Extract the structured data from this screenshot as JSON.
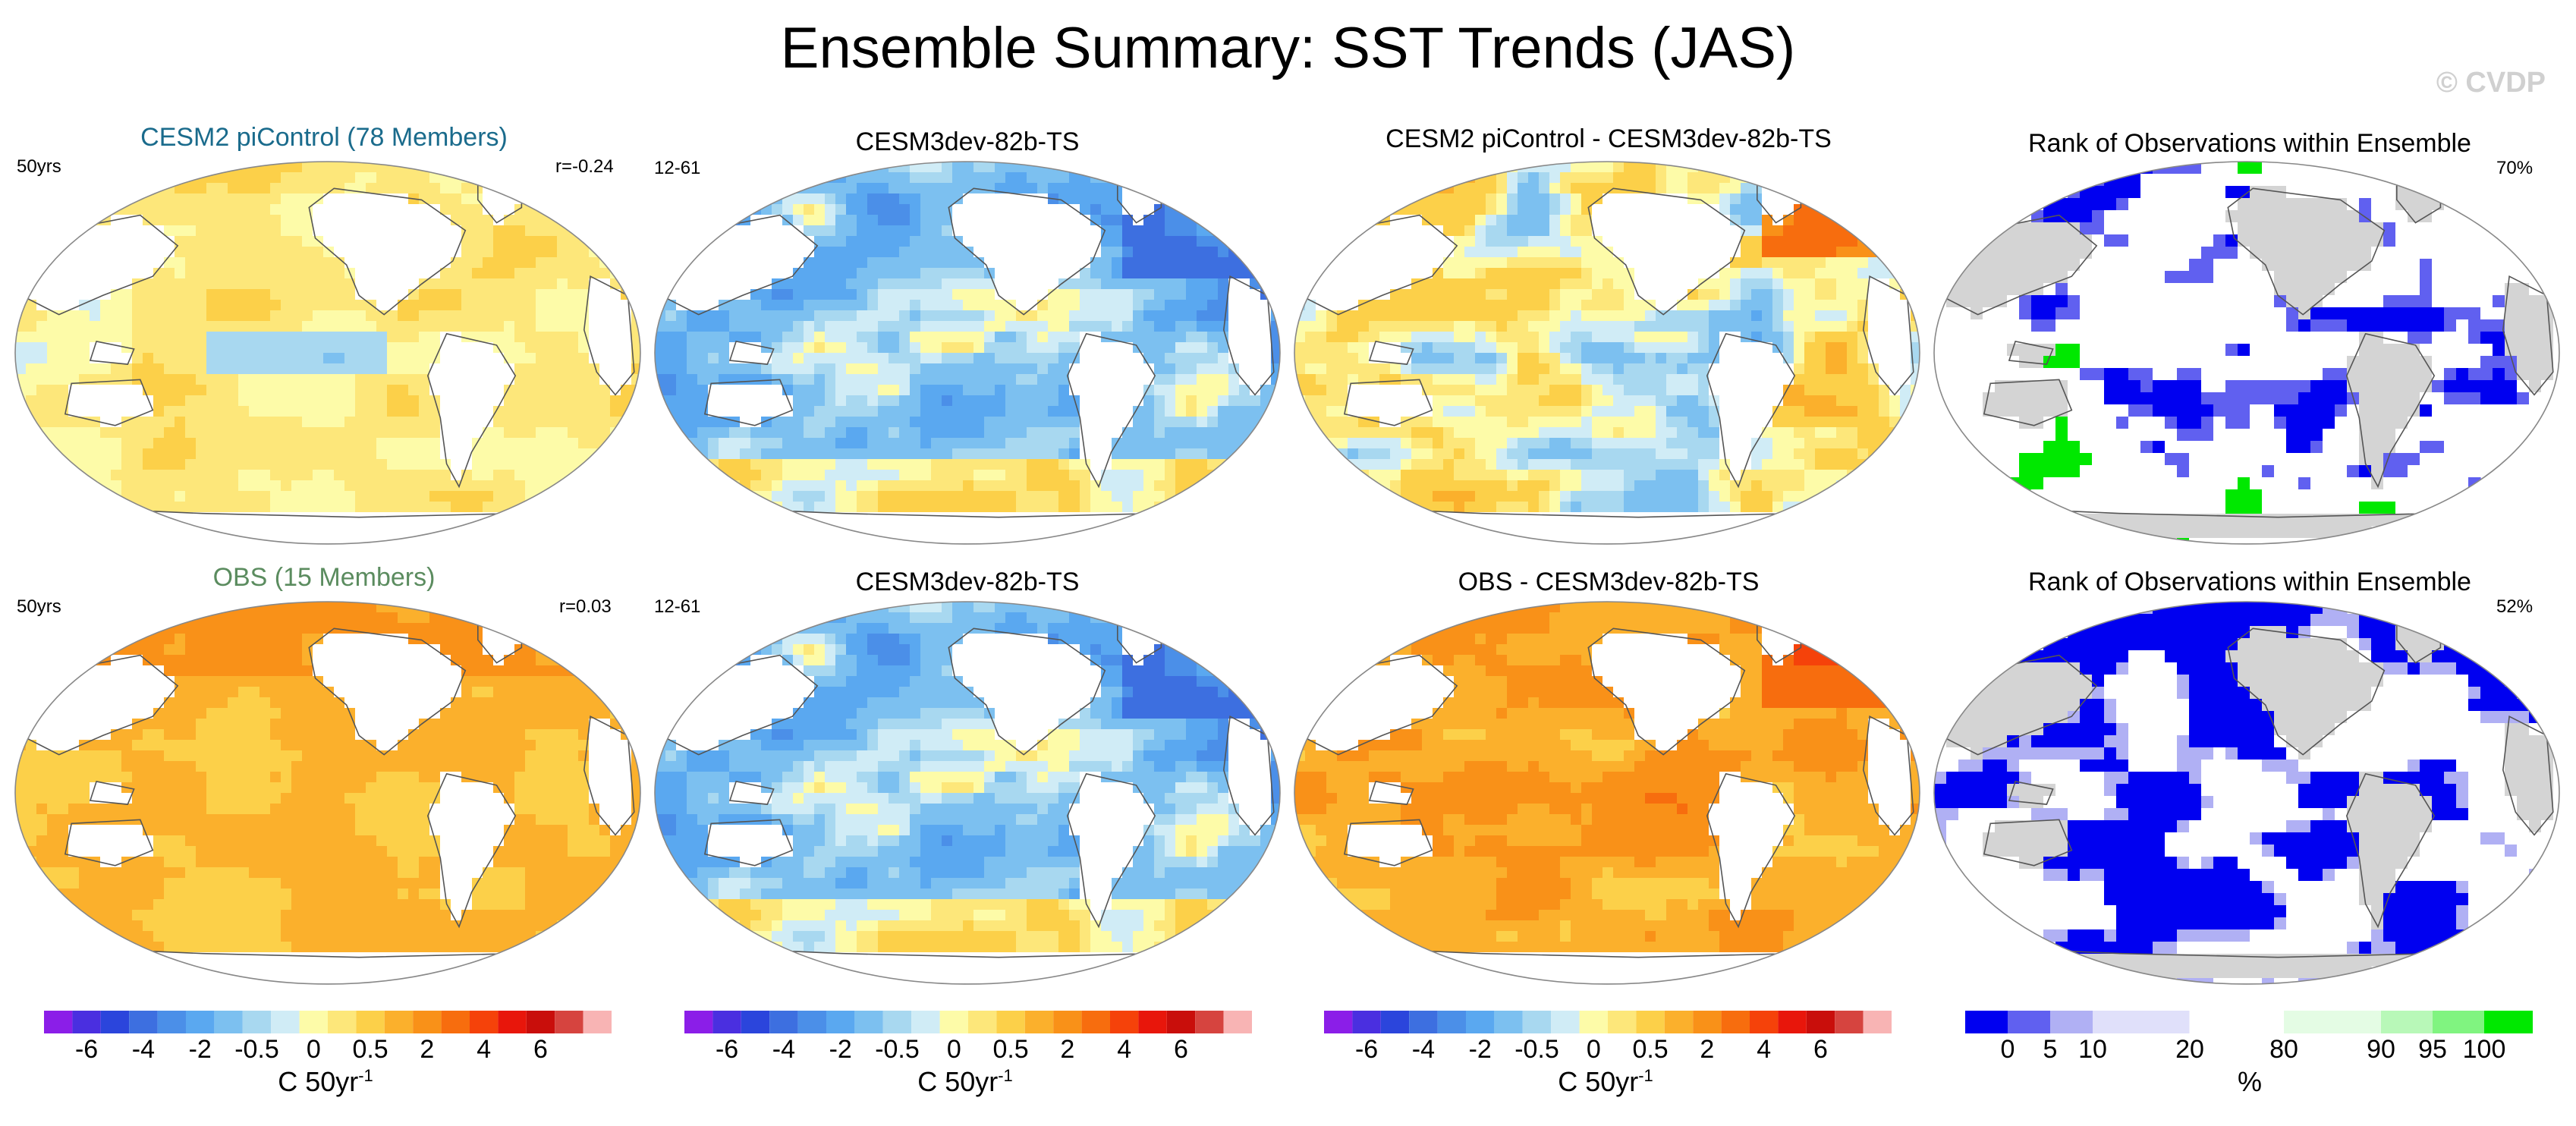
{
  "figure": {
    "title": "Ensemble Summary: SST Trends (JAS)",
    "watermark": "© CVDP"
  },
  "colors": {
    "title_blue": "#1a6b8c",
    "title_green": "#5b8c5f",
    "land_gray": "#d4d4d4",
    "trend_scale": [
      "#8b1ee8",
      "#4a2fe0",
      "#2b45dc",
      "#3d6fe0",
      "#4b8fe8",
      "#5aa8f0",
      "#7cc0f0",
      "#a8d8f0",
      "#d0ecf6",
      "#fdfba8",
      "#fde77a",
      "#fcd049",
      "#fbb02c",
      "#f99118",
      "#f76d0e",
      "#f5420a",
      "#e8160b",
      "#c90e0b",
      "#d6443f",
      "#f8b4b4"
    ],
    "rank_scale": [
      "#0000f0",
      "#6060f0",
      "#b0b0f4",
      "#e0e0fa",
      "#ffffff",
      "#ffffff",
      "#e4fce4",
      "#b8f8b8",
      "#80f480",
      "#00e800"
    ]
  },
  "chart_data": [
    {
      "type": "heatmap",
      "title": "CESM2 piControl (78 Members)",
      "corner_left": "50yrs",
      "corner_right": "r=-0.24",
      "colorbar": "trend",
      "pattern": "weak",
      "units": "C 50yr-1"
    },
    {
      "type": "heatmap",
      "title": "CESM3dev-82b-TS",
      "corner_left": "12-61",
      "corner_right": "",
      "colorbar": "trend",
      "pattern": "model",
      "units": "C 50yr-1"
    },
    {
      "type": "heatmap",
      "title": "CESM2 piControl - CESM3dev-82b-TS",
      "corner_left": "",
      "corner_right": "",
      "colorbar": "trend",
      "pattern": "diff1",
      "units": "C 50yr-1"
    },
    {
      "type": "heatmap",
      "title": "Rank of Observations within Ensemble",
      "corner_left": "",
      "corner_right": "70%",
      "colorbar": "rank",
      "pattern": "rank1",
      "units": "%"
    },
    {
      "type": "heatmap",
      "title": "OBS (15 Members)",
      "corner_left": "50yrs",
      "corner_right": "r=0.03",
      "colorbar": "trend",
      "pattern": "obs",
      "units": "C 50yr-1"
    },
    {
      "type": "heatmap",
      "title": "CESM3dev-82b-TS",
      "corner_left": "12-61",
      "corner_right": "",
      "colorbar": "trend",
      "pattern": "model",
      "units": "C 50yr-1"
    },
    {
      "type": "heatmap",
      "title": "OBS - CESM3dev-82b-TS",
      "corner_left": "",
      "corner_right": "",
      "colorbar": "trend",
      "pattern": "diff2",
      "units": "C 50yr-1"
    },
    {
      "type": "heatmap",
      "title": "Rank of Observations within Ensemble",
      "corner_left": "",
      "corner_right": "52%",
      "colorbar": "rank",
      "pattern": "rank2",
      "units": "%"
    }
  ],
  "colorbars": [
    {
      "kind": "trend",
      "tick_labels": [
        "-6",
        "-4",
        "-2",
        "-0.5",
        "0",
        "0.5",
        "2",
        "4",
        "6"
      ],
      "unit_label": "C 50yr",
      "unit_exp": "-1"
    },
    {
      "kind": "trend",
      "tick_labels": [
        "-6",
        "-4",
        "-2",
        "-0.5",
        "0",
        "0.5",
        "2",
        "4",
        "6"
      ],
      "unit_label": "C 50yr",
      "unit_exp": "-1"
    },
    {
      "kind": "trend",
      "tick_labels": [
        "-6",
        "-4",
        "-2",
        "-0.5",
        "0",
        "0.5",
        "2",
        "4",
        "6"
      ],
      "unit_label": "C 50yr",
      "unit_exp": "-1"
    },
    {
      "kind": "rank",
      "tick_labels": [
        "0",
        "5",
        "10",
        "20",
        "80",
        "90",
        "95",
        "100"
      ],
      "unit_label": "%",
      "unit_exp": ""
    }
  ]
}
